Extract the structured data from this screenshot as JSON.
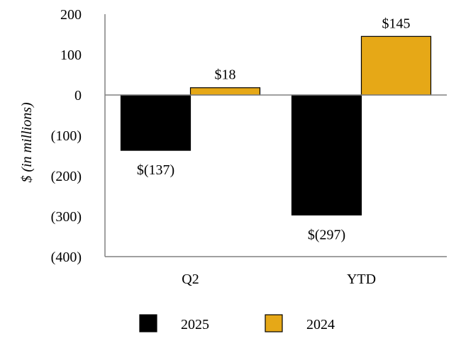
{
  "chart_data": {
    "type": "bar",
    "title": "",
    "xlabel": "",
    "ylabel": "$ (in millions)",
    "categories": [
      "Q2",
      "YTD"
    ],
    "series": [
      {
        "name": "2025",
        "values": [
          -137,
          -297
        ],
        "color": "#000000",
        "labels": [
          "$(137)",
          "$(297)"
        ]
      },
      {
        "name": "2024",
        "values": [
          18,
          145
        ],
        "color": "#E6A817",
        "labels": [
          "$18",
          "$145"
        ]
      }
    ],
    "ylim": [
      -400,
      200
    ],
    "yticks": [
      200,
      100,
      0,
      -100,
      -200,
      -300,
      -400
    ],
    "yticklabels": [
      "200",
      "100",
      "0",
      "(100)",
      "(200)",
      "(300)",
      "(400)"
    ],
    "grid": false,
    "legend_position": "bottom"
  }
}
